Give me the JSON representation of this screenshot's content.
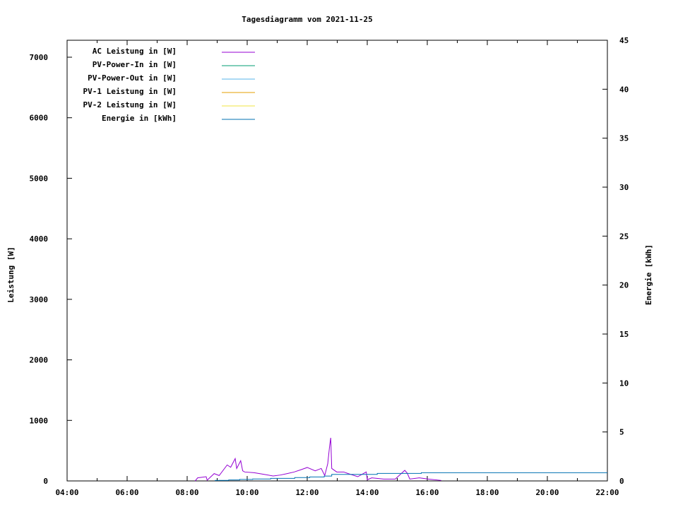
{
  "chart_data": {
    "type": "line",
    "title": "Tagesdiagramm vom 2021-11-25",
    "ylabel": "Leistung [W]",
    "y2label": "Energie [kWh]",
    "xlim": [
      "04:00",
      "22:00"
    ],
    "ylim": [
      0,
      7280
    ],
    "y2lim": [
      0,
      45
    ],
    "xticks": [
      "04:00",
      "06:00",
      "08:00",
      "10:00",
      "12:00",
      "14:00",
      "16:00",
      "18:00",
      "20:00",
      "22:00"
    ],
    "yticks": [
      "0",
      "1000",
      "2000",
      "3000",
      "4000",
      "5000",
      "6000",
      "7000"
    ],
    "y2ticks": [
      "0",
      "5",
      "10",
      "15",
      "20",
      "25",
      "30",
      "35",
      "40",
      "45"
    ],
    "grid": false,
    "legend_placement": "top-left",
    "series": [
      {
        "name": "AC Leistung in [W]",
        "color": "#9400d3",
        "axis": "y",
        "style": "line",
        "points": [
          [
            "08:16",
            0
          ],
          [
            "08:21",
            51
          ],
          [
            "08:38",
            70
          ],
          [
            "08:40",
            12
          ],
          [
            "08:54",
            121
          ],
          [
            "09:04",
            89
          ],
          [
            "09:20",
            264
          ],
          [
            "09:27",
            226
          ],
          [
            "09:36",
            369
          ],
          [
            "09:39",
            206
          ],
          [
            "09:47",
            334
          ],
          [
            "09:51",
            167
          ],
          [
            "09:55",
            148
          ],
          [
            "10:14",
            136
          ],
          [
            "10:33",
            109
          ],
          [
            "10:52",
            82
          ],
          [
            "11:06",
            97
          ],
          [
            "11:20",
            121
          ],
          [
            "11:34",
            148
          ],
          [
            "11:48",
            187
          ],
          [
            "12:00",
            222
          ],
          [
            "12:16",
            167
          ],
          [
            "12:28",
            206
          ],
          [
            "12:35",
            89
          ],
          [
            "12:41",
            284
          ],
          [
            "12:45",
            595
          ],
          [
            "12:47",
            712
          ],
          [
            "12:49",
            206
          ],
          [
            "12:59",
            148
          ],
          [
            "13:13",
            148
          ],
          [
            "13:22",
            121
          ],
          [
            "13:41",
            70
          ],
          [
            "13:58",
            148
          ],
          [
            "14:00",
            19
          ],
          [
            "14:09",
            51
          ],
          [
            "14:33",
            31
          ],
          [
            "14:56",
            31
          ],
          [
            "15:15",
            175
          ],
          [
            "15:20",
            128
          ],
          [
            "15:25",
            31
          ],
          [
            "15:44",
            51
          ],
          [
            "16:02",
            31
          ],
          [
            "16:28",
            8
          ]
        ]
      },
      {
        "name": "PV-Power-In in [W]",
        "color": "#009e73",
        "axis": "y",
        "style": "line",
        "points": []
      },
      {
        "name": "PV-Power-Out in [W]",
        "color": "#56b4e9",
        "axis": "y",
        "style": "line",
        "points": []
      },
      {
        "name": "PV-1 Leistung in [W]",
        "color": "#e69f00",
        "axis": "y",
        "style": "line",
        "points": []
      },
      {
        "name": "PV-2 Leistung in [W]",
        "color": "#f0e442",
        "axis": "y",
        "style": "line",
        "points": []
      },
      {
        "name": "Energie in [kWh]",
        "color": "#0072b2",
        "axis": "y2",
        "style": "step",
        "points": [
          [
            "08:56",
            0.05
          ],
          [
            "09:23",
            0.1
          ],
          [
            "09:45",
            0.15
          ],
          [
            "10:11",
            0.2
          ],
          [
            "10:47",
            0.26
          ],
          [
            "11:35",
            0.34
          ],
          [
            "12:05",
            0.41
          ],
          [
            "12:34",
            0.5
          ],
          [
            "12:49",
            0.67
          ],
          [
            "14:20",
            0.77
          ],
          [
            "15:48",
            0.84
          ],
          [
            "22:00",
            0.84
          ]
        ]
      }
    ]
  }
}
